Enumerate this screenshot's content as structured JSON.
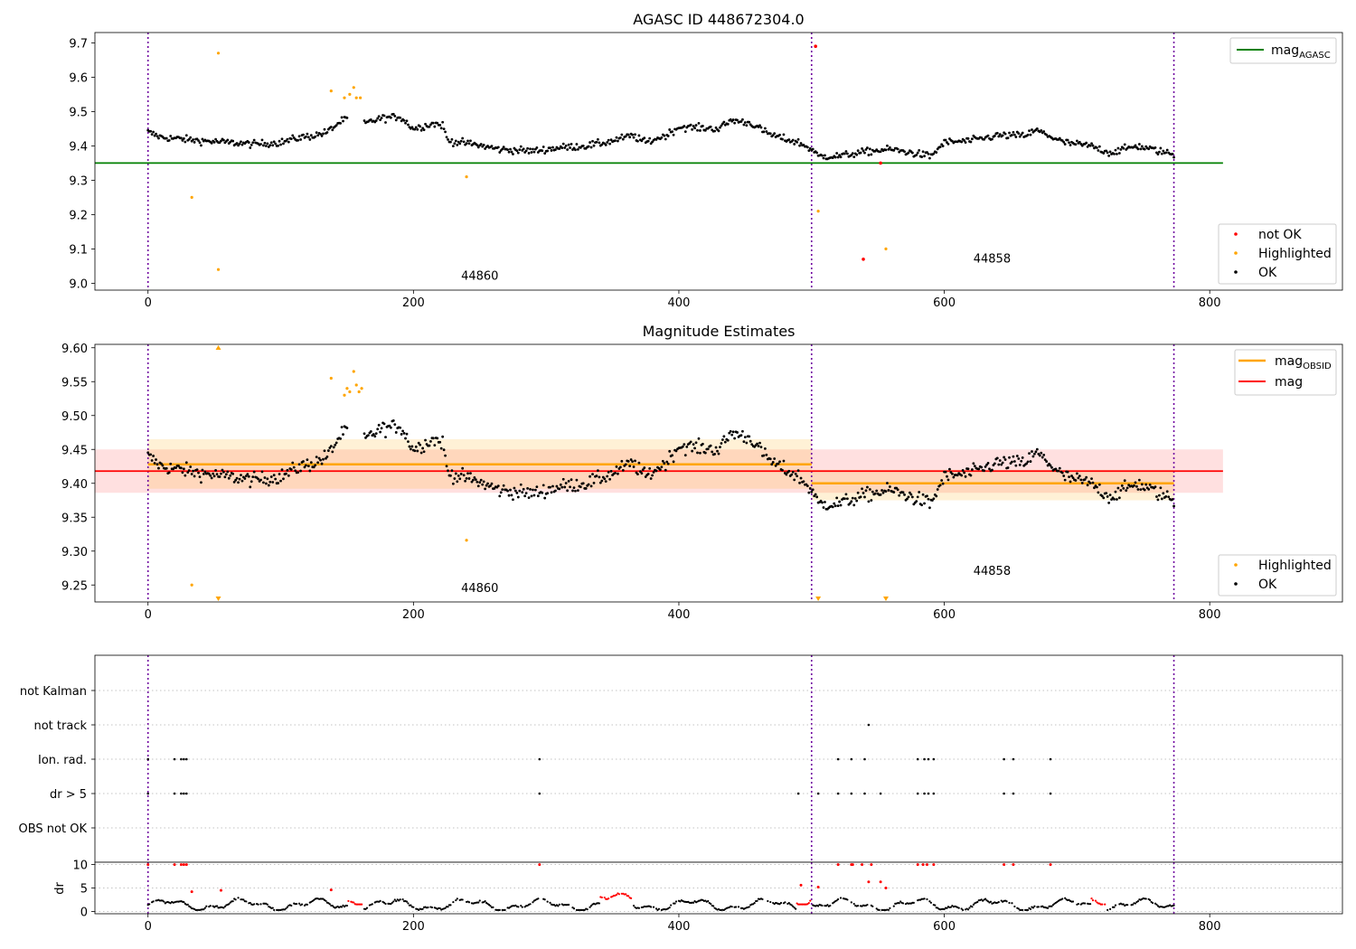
{
  "colors": {
    "ok": "#000000",
    "highlighted": "#ffa500",
    "not_ok": "#ff0000",
    "agasc": "#008000",
    "mag_obsid": "#ffa500",
    "mag": "#ff0000",
    "boundary": "#7000a0"
  },
  "chart_data": [
    {
      "id": "top",
      "type": "scatter",
      "title": "AGASC ID 448672304.0",
      "xlim": [
        -40,
        900
      ],
      "ylim": [
        8.98,
        9.73
      ],
      "xticks": [
        "0",
        "200",
        "400",
        "600",
        "800"
      ],
      "yticks": [
        "9.0",
        "9.1",
        "9.2",
        "9.3",
        "9.4",
        "9.5",
        "9.6",
        "9.7"
      ],
      "legend_top": [
        {
          "label": "mag",
          "sub": "AGASC",
          "color": "#008000"
        }
      ],
      "legend_bottom": [
        "not OK",
        "Highlighted",
        "OK"
      ],
      "obsid_labels": [
        {
          "text": "44860",
          "x": 250,
          "y": 9.01
        },
        {
          "text": "44858",
          "x": 636,
          "y": 9.06
        }
      ],
      "agasc_mag": 9.35,
      "boundaries": [
        0,
        500,
        773
      ],
      "highlighted_points": [
        [
          33,
          9.25
        ],
        [
          53,
          9.04
        ],
        [
          53,
          9.67
        ],
        [
          138,
          9.56
        ],
        [
          148,
          9.54
        ],
        [
          152,
          9.55
        ],
        [
          155,
          9.57
        ],
        [
          157,
          9.54
        ],
        [
          160,
          9.54
        ],
        [
          240,
          9.31
        ],
        [
          505,
          9.21
        ],
        [
          556,
          9.1
        ]
      ],
      "not_ok_points": [
        [
          503,
          9.69
        ],
        [
          539,
          9.07
        ],
        [
          552,
          9.35
        ]
      ]
    },
    {
      "id": "middle",
      "type": "scatter",
      "title": "Magnitude Estimates",
      "xlim": [
        -40,
        900
      ],
      "ylim": [
        9.225,
        9.605
      ],
      "xticks": [
        "0",
        "200",
        "400",
        "600",
        "800"
      ],
      "yticks": [
        "9.25",
        "9.30",
        "9.35",
        "9.40",
        "9.45",
        "9.50",
        "9.55",
        "9.60"
      ],
      "legend_top": [
        {
          "label": "mag",
          "sub": "OBSID",
          "color": "#ffa500"
        },
        {
          "label": "mag",
          "sub": "",
          "color": "#ff0000"
        }
      ],
      "legend_bottom": [
        "Highlighted",
        "OK"
      ],
      "obsid_labels": [
        {
          "text": "44860",
          "x": 250,
          "y": 9.24
        },
        {
          "text": "44858",
          "x": 636,
          "y": 9.265
        }
      ],
      "mag": 9.418,
      "mag_band": [
        9.386,
        9.45
      ],
      "obsid_mags": [
        {
          "x0": 0,
          "x1": 500,
          "mag": 9.428,
          "band": [
            9.392,
            9.465
          ]
        },
        {
          "x0": 500,
          "x1": 773,
          "mag": 9.4,
          "band": [
            9.375,
            9.42
          ]
        }
      ],
      "highlighted_points": [
        [
          33,
          9.25
        ],
        [
          138,
          9.555
        ],
        [
          148,
          9.53
        ],
        [
          150,
          9.54
        ],
        [
          152,
          9.535
        ],
        [
          155,
          9.565
        ],
        [
          157,
          9.545
        ],
        [
          159,
          9.535
        ],
        [
          161,
          9.54
        ],
        [
          240,
          9.316
        ]
      ],
      "out_of_range_markers": [
        [
          53,
          9.6
        ],
        [
          53,
          9.23
        ],
        [
          505,
          9.23
        ],
        [
          556,
          9.23
        ]
      ]
    },
    {
      "id": "flags",
      "type": "scatter",
      "ytick_labels": [
        "not Kalman",
        "not track",
        "Ion. rad.",
        "dr > 5",
        "OBS not OK"
      ],
      "xlim": [
        -40,
        900
      ],
      "flags": {
        "not track": [
          543
        ],
        "Ion. rad.": [
          0,
          20,
          25,
          27,
          29,
          295,
          520,
          530,
          540,
          580,
          585,
          588,
          592,
          645,
          652,
          680
        ],
        "dr > 5": [
          0,
          20,
          25,
          27,
          29,
          295,
          490,
          505,
          520,
          530,
          540,
          552,
          580,
          585,
          588,
          592,
          645,
          652,
          680
        ]
      }
    },
    {
      "id": "dr",
      "type": "scatter",
      "ylabel": "dr",
      "xlim": [
        -40,
        900
      ],
      "ylim": [
        -0.5,
        10.5
      ],
      "xticks": [
        "0",
        "200",
        "400",
        "600",
        "800"
      ],
      "yticks": [
        "0",
        "5",
        "10"
      ],
      "red_points": [
        [
          0,
          10
        ],
        [
          20,
          10
        ],
        [
          25,
          10
        ],
        [
          27,
          10
        ],
        [
          29,
          10
        ],
        [
          295,
          10
        ],
        [
          520,
          10
        ],
        [
          530,
          10
        ],
        [
          531,
          10
        ],
        [
          538,
          10
        ],
        [
          545,
          10
        ],
        [
          580,
          10
        ],
        [
          584,
          10
        ],
        [
          587,
          10
        ],
        [
          592,
          10
        ],
        [
          645,
          10
        ],
        [
          652,
          10
        ],
        [
          680,
          10
        ],
        [
          33,
          4.2
        ],
        [
          55,
          4.5
        ],
        [
          138,
          4.6
        ],
        [
          492,
          5.6
        ],
        [
          505,
          5.2
        ],
        [
          543,
          6.3
        ],
        [
          552,
          6.3
        ],
        [
          556,
          5
        ]
      ]
    }
  ]
}
